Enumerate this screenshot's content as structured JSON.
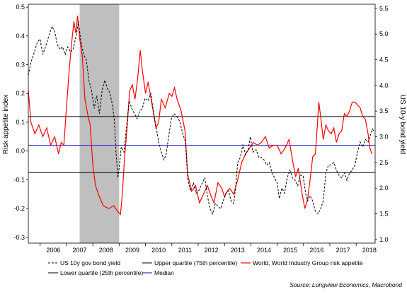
{
  "chart_data": {
    "type": "line",
    "source": "Source: Longview Economics, Macrobond",
    "y_left": {
      "label": "Risk appetite index",
      "range": [
        -0.32,
        0.51
      ],
      "ticks": [
        "0.5",
        "0.4",
        "0.3",
        "0.2",
        "0.1",
        "0.0",
        "-0.1",
        "-0.2",
        "-0.3"
      ],
      "tick_values": [
        0.5,
        0.4,
        0.3,
        0.2,
        0.1,
        0.0,
        -0.1,
        -0.2,
        -0.3
      ]
    },
    "y_right": {
      "label": "US 10-y bond yield",
      "range": [
        0.93,
        5.58
      ],
      "ticks": [
        "5.5",
        "5.0",
        "4.5",
        "4.0",
        "3.5",
        "3.0",
        "2.5",
        "2.0",
        "1.5",
        "1.0"
      ],
      "tick_values": [
        5.5,
        5.0,
        4.5,
        4.0,
        3.5,
        3.0,
        2.5,
        2.0,
        1.5,
        1.0
      ]
    },
    "x_axis": {
      "range": [
        2005.55,
        2018.72
      ],
      "year_labels": [
        "2006",
        "2007",
        "2008",
        "2009",
        "2010",
        "2011",
        "2012",
        "2013",
        "2014",
        "2015",
        "2016",
        "2017",
        "2018"
      ]
    },
    "shaded_region": [
      2007.5,
      2009.0
    ],
    "reference_lines": {
      "upper_quartile": 0.12,
      "median": 0.02,
      "lower_quartile": -0.075
    },
    "colors": {
      "risk_appetite": "#ff0000",
      "bond_yield": "#000000",
      "upper_quartile": "#000000",
      "median": "#3333cc",
      "lower_quartile": "#000000",
      "recession": "#bfbfbf"
    },
    "legend": {
      "bond": "US 10y gov bond yield",
      "upper": "Upper quartile (75th percentile)",
      "risk": "World, World Industry Group risk appetite",
      "lower": "Lower quartile (25th percentile)",
      "median": "Median"
    },
    "series": [
      {
        "name": "World, World Industry Group risk appetite",
        "axis": "left",
        "points": [
          [
            2005.55,
            0.21
          ],
          [
            2005.65,
            0.1
          ],
          [
            2005.8,
            0.06
          ],
          [
            2005.95,
            0.09
          ],
          [
            2006.1,
            0.05
          ],
          [
            2006.25,
            0.08
          ],
          [
            2006.4,
            0.02
          ],
          [
            2006.55,
            0.05
          ],
          [
            2006.7,
            -0.01
          ],
          [
            2006.8,
            0.03
          ],
          [
            2006.9,
            0.02
          ],
          [
            2007.0,
            0.15
          ],
          [
            2007.1,
            0.28
          ],
          [
            2007.2,
            0.38
          ],
          [
            2007.28,
            0.45
          ],
          [
            2007.35,
            0.41
          ],
          [
            2007.42,
            0.47
          ],
          [
            2007.5,
            0.39
          ],
          [
            2007.6,
            0.33
          ],
          [
            2007.7,
            0.18
          ],
          [
            2007.8,
            0.13
          ],
          [
            2007.9,
            0.09
          ],
          [
            2008.0,
            -0.05
          ],
          [
            2008.1,
            -0.12
          ],
          [
            2008.25,
            -0.16
          ],
          [
            2008.4,
            -0.19
          ],
          [
            2008.6,
            -0.2
          ],
          [
            2008.8,
            -0.19
          ],
          [
            2008.95,
            -0.21
          ],
          [
            2009.05,
            -0.22
          ],
          [
            2009.12,
            -0.15
          ],
          [
            2009.2,
            -0.03
          ],
          [
            2009.3,
            0.08
          ],
          [
            2009.4,
            0.21
          ],
          [
            2009.5,
            0.23
          ],
          [
            2009.6,
            0.18
          ],
          [
            2009.7,
            0.25
          ],
          [
            2009.8,
            0.35
          ],
          [
            2009.88,
            0.28
          ],
          [
            2010.0,
            0.2
          ],
          [
            2010.1,
            0.24
          ],
          [
            2010.25,
            0.16
          ],
          [
            2010.4,
            0.08
          ],
          [
            2010.5,
            0.1
          ],
          [
            2010.6,
            0.18
          ],
          [
            2010.75,
            0.15
          ],
          [
            2010.9,
            0.2
          ],
          [
            2011.0,
            0.19
          ],
          [
            2011.1,
            0.22
          ],
          [
            2011.2,
            0.18
          ],
          [
            2011.35,
            0.14
          ],
          [
            2011.5,
            0.07
          ],
          [
            2011.6,
            -0.08
          ],
          [
            2011.75,
            -0.14
          ],
          [
            2011.9,
            -0.12
          ],
          [
            2012.05,
            -0.18
          ],
          [
            2012.2,
            -0.15
          ],
          [
            2012.35,
            -0.12
          ],
          [
            2012.5,
            -0.16
          ],
          [
            2012.6,
            -0.18
          ],
          [
            2012.75,
            -0.11
          ],
          [
            2012.9,
            -0.13
          ],
          [
            2013.0,
            -0.16
          ],
          [
            2013.1,
            -0.14
          ],
          [
            2013.2,
            -0.13
          ],
          [
            2013.35,
            -0.15
          ],
          [
            2013.5,
            -0.1
          ],
          [
            2013.65,
            -0.04
          ],
          [
            2013.8,
            -0.01
          ],
          [
            2013.95,
            0.01
          ],
          [
            2014.1,
            0.03
          ],
          [
            2014.25,
            0.02
          ],
          [
            2014.4,
            0.03
          ],
          [
            2014.55,
            0.05
          ],
          [
            2014.7,
            0.01
          ],
          [
            2014.85,
            0.02
          ],
          [
            2015.0,
            0.02
          ],
          [
            2015.15,
            -0.01
          ],
          [
            2015.3,
            0.01
          ],
          [
            2015.45,
            0.04
          ],
          [
            2015.6,
            -0.04
          ],
          [
            2015.7,
            -0.09
          ],
          [
            2015.8,
            -0.06
          ],
          [
            2015.95,
            -0.15
          ],
          [
            2016.05,
            -0.2
          ],
          [
            2016.15,
            -0.17
          ],
          [
            2016.25,
            -0.1
          ],
          [
            2016.35,
            -0.02
          ],
          [
            2016.45,
            -0.01
          ],
          [
            2016.52,
            0.08
          ],
          [
            2016.58,
            0.17
          ],
          [
            2016.65,
            0.12
          ],
          [
            2016.75,
            0.04
          ],
          [
            2016.85,
            0.09
          ],
          [
            2016.95,
            0.07
          ],
          [
            2017.05,
            0.06
          ],
          [
            2017.15,
            0.08
          ],
          [
            2017.25,
            0.03
          ],
          [
            2017.35,
            0.06
          ],
          [
            2017.45,
            0.07
          ],
          [
            2017.55,
            0.13
          ],
          [
            2017.65,
            0.12
          ],
          [
            2017.75,
            0.14
          ],
          [
            2017.85,
            0.17
          ],
          [
            2017.95,
            0.17
          ],
          [
            2018.05,
            0.16
          ],
          [
            2018.15,
            0.15
          ],
          [
            2018.25,
            0.12
          ],
          [
            2018.35,
            0.11
          ],
          [
            2018.45,
            0.06
          ],
          [
            2018.52,
            0.01
          ],
          [
            2018.6,
            -0.01
          ]
        ]
      },
      {
        "name": "US 10y gov bond yield",
        "axis": "right",
        "points": [
          [
            2005.55,
            4.2
          ],
          [
            2005.65,
            4.45
          ],
          [
            2005.75,
            4.6
          ],
          [
            2005.9,
            4.85
          ],
          [
            2006.0,
            4.9
          ],
          [
            2006.1,
            4.6
          ],
          [
            2006.2,
            4.75
          ],
          [
            2006.35,
            5.0
          ],
          [
            2006.45,
            5.15
          ],
          [
            2006.55,
            5.05
          ],
          [
            2006.65,
            4.8
          ],
          [
            2006.75,
            4.7
          ],
          [
            2006.85,
            4.75
          ],
          [
            2006.95,
            4.6
          ],
          [
            2007.05,
            4.75
          ],
          [
            2007.15,
            4.65
          ],
          [
            2007.25,
            4.7
          ],
          [
            2007.38,
            5.0
          ],
          [
            2007.45,
            5.25
          ],
          [
            2007.55,
            4.85
          ],
          [
            2007.65,
            4.6
          ],
          [
            2007.75,
            4.5
          ],
          [
            2007.85,
            4.1
          ],
          [
            2007.95,
            3.9
          ],
          [
            2008.05,
            3.55
          ],
          [
            2008.15,
            3.8
          ],
          [
            2008.25,
            3.45
          ],
          [
            2008.35,
            3.9
          ],
          [
            2008.45,
            4.1
          ],
          [
            2008.55,
            3.95
          ],
          [
            2008.65,
            3.85
          ],
          [
            2008.75,
            3.6
          ],
          [
            2008.82,
            3.3
          ],
          [
            2008.88,
            2.7
          ],
          [
            2008.95,
            2.2
          ],
          [
            2009.0,
            2.4
          ],
          [
            2009.08,
            2.8
          ],
          [
            2009.18,
            2.7
          ],
          [
            2009.28,
            3.2
          ],
          [
            2009.38,
            3.7
          ],
          [
            2009.48,
            3.55
          ],
          [
            2009.58,
            3.45
          ],
          [
            2009.68,
            3.35
          ],
          [
            2009.78,
            3.5
          ],
          [
            2009.88,
            3.55
          ],
          [
            2009.98,
            3.75
          ],
          [
            2010.1,
            3.7
          ],
          [
            2010.2,
            3.85
          ],
          [
            2010.3,
            3.5
          ],
          [
            2010.4,
            3.2
          ],
          [
            2010.5,
            2.9
          ],
          [
            2010.6,
            2.7
          ],
          [
            2010.7,
            2.55
          ],
          [
            2010.78,
            2.65
          ],
          [
            2010.88,
            3.0
          ],
          [
            2010.98,
            3.35
          ],
          [
            2011.08,
            3.45
          ],
          [
            2011.18,
            3.4
          ],
          [
            2011.3,
            3.3
          ],
          [
            2011.42,
            3.05
          ],
          [
            2011.52,
            2.9
          ],
          [
            2011.6,
            2.2
          ],
          [
            2011.7,
            1.95
          ],
          [
            2011.82,
            2.1
          ],
          [
            2011.92,
            1.9
          ],
          [
            2012.02,
            1.95
          ],
          [
            2012.15,
            2.1
          ],
          [
            2012.25,
            2.2
          ],
          [
            2012.35,
            1.85
          ],
          [
            2012.45,
            1.6
          ],
          [
            2012.55,
            1.5
          ],
          [
            2012.65,
            1.7
          ],
          [
            2012.75,
            1.65
          ],
          [
            2012.85,
            1.6
          ],
          [
            2012.95,
            1.75
          ],
          [
            2013.05,
            1.9
          ],
          [
            2013.15,
            1.95
          ],
          [
            2013.25,
            1.75
          ],
          [
            2013.35,
            1.7
          ],
          [
            2013.42,
            2.0
          ],
          [
            2013.5,
            2.5
          ],
          [
            2013.6,
            2.6
          ],
          [
            2013.7,
            2.85
          ],
          [
            2013.8,
            2.65
          ],
          [
            2013.9,
            2.75
          ],
          [
            2013.98,
            3.0
          ],
          [
            2014.08,
            2.7
          ],
          [
            2014.2,
            2.75
          ],
          [
            2014.3,
            2.6
          ],
          [
            2014.4,
            2.6
          ],
          [
            2014.5,
            2.55
          ],
          [
            2014.6,
            2.45
          ],
          [
            2014.7,
            2.5
          ],
          [
            2014.8,
            2.3
          ],
          [
            2014.9,
            2.2
          ],
          [
            2015.0,
            2.1
          ],
          [
            2015.08,
            1.8
          ],
          [
            2015.18,
            2.0
          ],
          [
            2015.28,
            1.9
          ],
          [
            2015.38,
            2.2
          ],
          [
            2015.48,
            2.35
          ],
          [
            2015.58,
            2.2
          ],
          [
            2015.68,
            2.15
          ],
          [
            2015.78,
            2.05
          ],
          [
            2015.88,
            2.25
          ],
          [
            2015.98,
            2.25
          ],
          [
            2016.08,
            1.9
          ],
          [
            2016.15,
            1.75
          ],
          [
            2016.25,
            1.85
          ],
          [
            2016.35,
            1.75
          ],
          [
            2016.45,
            1.55
          ],
          [
            2016.55,
            1.5
          ],
          [
            2016.65,
            1.6
          ],
          [
            2016.75,
            1.75
          ],
          [
            2016.85,
            2.3
          ],
          [
            2016.95,
            2.45
          ],
          [
            2017.05,
            2.45
          ],
          [
            2017.15,
            2.5
          ],
          [
            2017.25,
            2.35
          ],
          [
            2017.35,
            2.25
          ],
          [
            2017.45,
            2.2
          ],
          [
            2017.55,
            2.3
          ],
          [
            2017.65,
            2.15
          ],
          [
            2017.75,
            2.3
          ],
          [
            2017.85,
            2.35
          ],
          [
            2017.95,
            2.45
          ],
          [
            2018.05,
            2.7
          ],
          [
            2018.15,
            2.9
          ],
          [
            2018.25,
            2.8
          ],
          [
            2018.35,
            2.95
          ],
          [
            2018.45,
            2.9
          ],
          [
            2018.55,
            3.05
          ],
          [
            2018.62,
            3.15
          ],
          [
            2018.68,
            3.1
          ]
        ]
      }
    ]
  }
}
